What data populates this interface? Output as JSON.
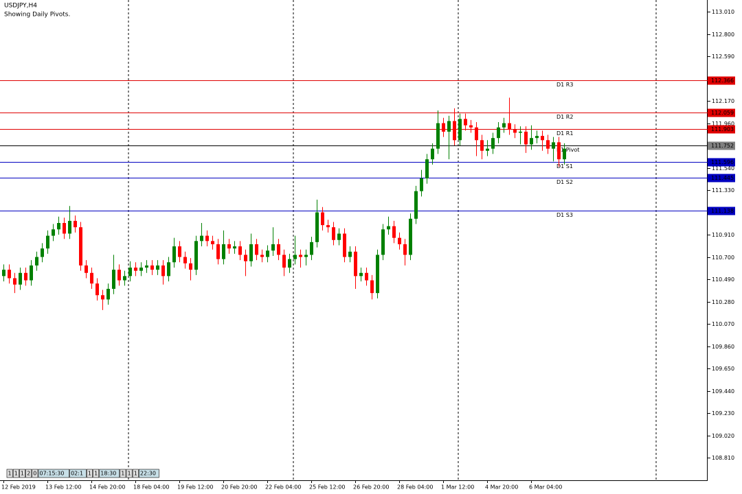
{
  "chart_data": {
    "type": "candlestick",
    "title": "USDJPY,H4",
    "subtitle": "Showing Daily Pivots.",
    "categories": [
      "12 Feb 2019",
      null,
      null,
      null,
      null,
      null,
      null,
      null,
      "13 Feb 12:00",
      null,
      null,
      null,
      null,
      null,
      null,
      null,
      "14 Feb 20:00",
      null,
      null,
      null,
      null,
      null,
      null,
      null,
      "18 Feb 04:00",
      null,
      null,
      null,
      null,
      null,
      null,
      null,
      "19 Feb 12:00",
      null,
      null,
      null,
      null,
      null,
      null,
      null,
      "20 Feb 20:00",
      null,
      null,
      null,
      null,
      null,
      null,
      null,
      "22 Feb 04:00",
      null,
      null,
      null,
      null,
      null,
      null,
      null,
      "25 Feb 12:00",
      null,
      null,
      null,
      null,
      null,
      null,
      null,
      "26 Feb 20:00",
      null,
      null,
      null,
      null,
      null,
      null,
      null,
      "28 Feb 04:00",
      null,
      null,
      null,
      null,
      null,
      null,
      null,
      "1 Mar 12:00",
      null,
      null,
      null,
      null,
      null,
      null,
      null,
      "4 Mar 20:00",
      null,
      null,
      null,
      null,
      null,
      null,
      null,
      "6 Mar 04:00",
      null,
      null,
      null,
      null,
      null,
      null
    ],
    "open": [
      110.52,
      110.58,
      110.5,
      110.44,
      110.55,
      110.48,
      110.62,
      110.7,
      110.78,
      110.9,
      110.96,
      111.02,
      110.92,
      111.04,
      110.98,
      110.62,
      110.55,
      110.45,
      110.34,
      110.3,
      110.4,
      110.58,
      110.48,
      110.52,
      110.6,
      110.57,
      110.6,
      110.62,
      110.58,
      110.62,
      110.52,
      110.65,
      110.8,
      110.7,
      110.64,
      110.58,
      110.85,
      110.9,
      110.85,
      110.82,
      110.68,
      110.82,
      110.78,
      110.8,
      110.72,
      110.66,
      110.82,
      110.72,
      110.7,
      110.76,
      110.82,
      110.72,
      110.6,
      110.68,
      110.72,
      110.7,
      110.72,
      110.84,
      111.12,
      111.0,
      110.98,
      110.86,
      110.92,
      110.7,
      110.75,
      110.52,
      110.55,
      110.48,
      110.36,
      110.72,
      110.96,
      110.99,
      110.88,
      110.82,
      110.72,
      111.06,
      111.32,
      111.44,
      111.62,
      111.72,
      111.96,
      111.88,
      111.98,
      111.8,
      112.0,
      111.94,
      111.92,
      111.8,
      111.7,
      111.72,
      111.82,
      111.92,
      111.96,
      111.9,
      111.87,
      111.88,
      111.76,
      111.82,
      111.84,
      111.8,
      111.72,
      111.78,
      111.62
    ],
    "high": [
      110.63,
      110.63,
      110.55,
      110.6,
      110.6,
      110.67,
      110.75,
      110.83,
      110.95,
      111.01,
      111.08,
      111.07,
      111.18,
      111.09,
      111.03,
      110.67,
      110.6,
      110.5,
      110.39,
      110.45,
      110.72,
      110.63,
      110.57,
      110.66,
      110.65,
      110.65,
      110.67,
      110.67,
      110.67,
      110.67,
      110.7,
      110.88,
      110.85,
      110.75,
      110.69,
      110.9,
      111.02,
      110.95,
      110.9,
      110.87,
      110.95,
      110.87,
      110.85,
      110.85,
      110.77,
      110.92,
      110.87,
      110.77,
      110.81,
      110.98,
      110.87,
      110.77,
      110.73,
      110.9,
      110.77,
      110.77,
      110.89,
      111.24,
      111.17,
      111.05,
      111.03,
      110.97,
      110.97,
      110.8,
      110.8,
      110.6,
      110.6,
      110.53,
      110.77,
      111.01,
      111.08,
      111.04,
      110.93,
      110.87,
      111.11,
      111.37,
      111.52,
      111.67,
      111.77,
      112.08,
      112.01,
      112.03,
      112.1,
      112.05,
      112.05,
      111.99,
      111.97,
      111.85,
      111.8,
      111.87,
      111.97,
      112.01,
      112.2,
      111.95,
      111.93,
      111.93,
      111.94,
      111.89,
      111.89,
      111.85,
      111.83,
      111.83,
      111.77
    ],
    "low": [
      110.47,
      110.45,
      110.36,
      110.39,
      110.43,
      110.43,
      110.57,
      110.65,
      110.73,
      110.85,
      110.91,
      110.87,
      110.87,
      110.93,
      110.57,
      110.5,
      110.4,
      110.29,
      110.2,
      110.25,
      110.35,
      110.43,
      110.43,
      110.47,
      110.52,
      110.52,
      110.55,
      110.53,
      110.53,
      110.44,
      110.47,
      110.6,
      110.65,
      110.59,
      110.48,
      110.53,
      110.8,
      110.8,
      110.77,
      110.63,
      110.63,
      110.73,
      110.73,
      110.67,
      110.52,
      110.61,
      110.67,
      110.65,
      110.65,
      110.71,
      110.67,
      110.52,
      110.55,
      110.63,
      110.6,
      110.62,
      110.67,
      110.79,
      110.95,
      110.93,
      110.81,
      110.81,
      110.65,
      110.65,
      110.4,
      110.47,
      110.43,
      110.3,
      110.31,
      110.67,
      110.91,
      110.83,
      110.77,
      110.62,
      110.67,
      111.01,
      111.27,
      111.39,
      111.57,
      111.67,
      111.83,
      111.62,
      111.75,
      111.75,
      111.89,
      111.87,
      111.65,
      111.62,
      111.65,
      111.67,
      111.77,
      111.87,
      111.85,
      111.82,
      111.76,
      111.68,
      111.71,
      111.77,
      111.7,
      111.67,
      111.6,
      111.55,
      111.57
    ],
    "close": [
      110.58,
      110.5,
      110.44,
      110.55,
      110.48,
      110.62,
      110.7,
      110.78,
      110.9,
      110.96,
      111.02,
      110.92,
      111.04,
      110.98,
      110.62,
      110.55,
      110.45,
      110.34,
      110.3,
      110.4,
      110.58,
      110.48,
      110.52,
      110.6,
      110.57,
      110.6,
      110.62,
      110.58,
      110.62,
      110.52,
      110.65,
      110.8,
      110.7,
      110.64,
      110.58,
      110.85,
      110.9,
      110.85,
      110.82,
      110.68,
      110.82,
      110.78,
      110.8,
      110.72,
      110.66,
      110.82,
      110.72,
      110.7,
      110.76,
      110.82,
      110.72,
      110.6,
      110.68,
      110.72,
      110.7,
      110.72,
      110.84,
      111.12,
      111.0,
      110.98,
      110.86,
      110.92,
      110.7,
      110.75,
      110.52,
      110.55,
      110.48,
      110.36,
      110.72,
      110.96,
      110.99,
      110.88,
      110.82,
      110.72,
      111.06,
      111.32,
      111.44,
      111.62,
      111.72,
      111.96,
      111.88,
      111.98,
      111.8,
      112.0,
      111.94,
      111.92,
      111.8,
      111.7,
      111.72,
      111.82,
      111.92,
      111.96,
      111.9,
      111.87,
      111.88,
      111.76,
      111.82,
      111.84,
      111.8,
      111.72,
      111.78,
      111.62,
      111.72
    ],
    "up_color": "#008000",
    "down_color": "#ff0000",
    "ylim": [
      108.597,
      113.12
    ],
    "yticks": [
      {
        "value": 113.01,
        "label": "113.010"
      },
      {
        "value": 112.8,
        "label": "112.800"
      },
      {
        "value": 112.59,
        "label": "112.590"
      },
      {
        "value": 112.17,
        "label": "112.170"
      },
      {
        "value": 111.96,
        "label": "111.960"
      },
      {
        "value": 111.54,
        "label": "111.540"
      },
      {
        "value": 111.33,
        "label": "111.330"
      },
      {
        "value": 110.91,
        "label": "110.910"
      },
      {
        "value": 110.7,
        "label": "110.700"
      },
      {
        "value": 110.49,
        "label": "110.490"
      },
      {
        "value": 110.28,
        "label": "110.280"
      },
      {
        "value": 110.07,
        "label": "110.070"
      },
      {
        "value": 109.86,
        "label": "109.860"
      },
      {
        "value": 109.65,
        "label": "109.650"
      },
      {
        "value": 109.44,
        "label": "109.440"
      },
      {
        "value": 109.23,
        "label": "109.230"
      },
      {
        "value": 109.02,
        "label": "109.020"
      },
      {
        "value": 108.81,
        "label": "108.810"
      }
    ],
    "pivots": [
      {
        "name": "D1 R3",
        "value": 112.366,
        "color": "#e00000"
      },
      {
        "name": "D1 R2",
        "value": 112.059,
        "color": "#e00000"
      },
      {
        "name": "D1 R1",
        "value": 111.903,
        "color": "#e00000"
      },
      {
        "name": "D1 Pivot",
        "value": 111.752,
        "color": "#000000"
      },
      {
        "name": "D1 S1",
        "value": 111.596,
        "color": "#0000c0"
      },
      {
        "name": "D1 S2",
        "value": 111.445,
        "color": "#0000c0"
      },
      {
        "name": "D1 S3",
        "value": 111.138,
        "color": "#0000c0"
      }
    ]
  },
  "status_bar": [
    "1",
    "1",
    "1",
    "2",
    "0",
    "07:15:30",
    "02:1",
    "1",
    "1",
    "18:30",
    "1",
    "1",
    "1",
    "22:30"
  ]
}
